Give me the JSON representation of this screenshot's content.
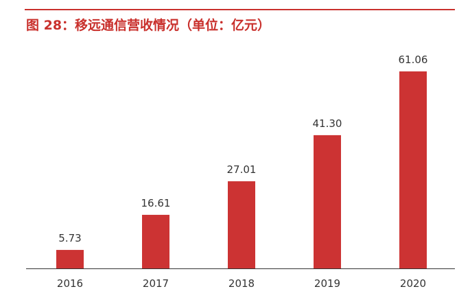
{
  "figure": {
    "title": "图 28：移远通信营收情况（单位：亿元）"
  },
  "colors": {
    "accent": "#c9302c",
    "bar": "#cc3333",
    "axis": "#333333",
    "text": "#333333"
  },
  "chart_data": {
    "type": "bar",
    "title": "图 28：移远通信营收情况（单位：亿元）",
    "categories": [
      "2016",
      "2017",
      "2018",
      "2019",
      "2020"
    ],
    "values": [
      5.73,
      16.61,
      27.01,
      41.3,
      61.06
    ],
    "value_labels": [
      "5.73",
      "16.61",
      "27.01",
      "41.30",
      "61.06"
    ],
    "xlabel": "",
    "ylabel": "",
    "ylim": [
      0,
      65
    ],
    "grid": false,
    "legend": "none"
  }
}
